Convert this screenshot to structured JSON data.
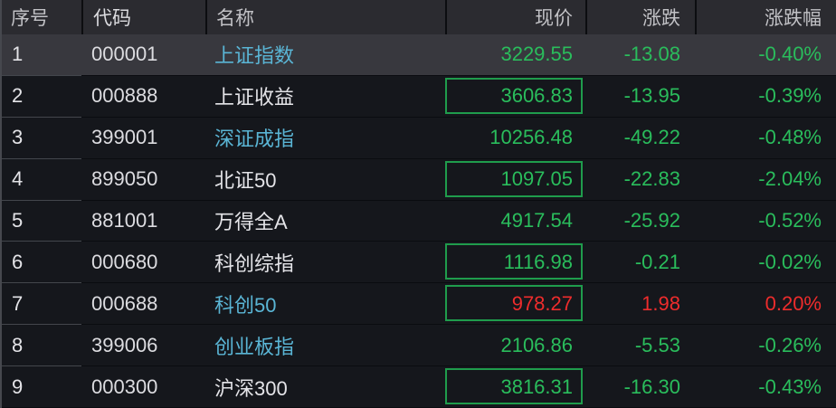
{
  "table": {
    "columns": [
      {
        "key": "seq",
        "label": "序号"
      },
      {
        "key": "code",
        "label": "代码"
      },
      {
        "key": "name",
        "label": "名称"
      },
      {
        "key": "price",
        "label": "现价"
      },
      {
        "key": "change",
        "label": "涨跌"
      },
      {
        "key": "change_pct",
        "label": "涨跌幅"
      }
    ],
    "rows": [
      {
        "seq": "1",
        "code": "000001",
        "name": "上证指数",
        "name_color": "cyan",
        "price": "3229.55",
        "change": "-13.08",
        "change_pct": "-0.40%",
        "trend": "down",
        "price_boxed": false,
        "highlighted": true
      },
      {
        "seq": "2",
        "code": "000888",
        "name": "上证收益",
        "name_color": "white",
        "price": "3606.83",
        "change": "-13.95",
        "change_pct": "-0.39%",
        "trend": "down",
        "price_boxed": true,
        "highlighted": false
      },
      {
        "seq": "3",
        "code": "399001",
        "name": "深证成指",
        "name_color": "cyan",
        "price": "10256.48",
        "change": "-49.22",
        "change_pct": "-0.48%",
        "trend": "down",
        "price_boxed": false,
        "highlighted": false
      },
      {
        "seq": "4",
        "code": "899050",
        "name": "北证50",
        "name_color": "white",
        "price": "1097.05",
        "change": "-22.83",
        "change_pct": "-2.04%",
        "trend": "down",
        "price_boxed": true,
        "highlighted": false
      },
      {
        "seq": "5",
        "code": "881001",
        "name": "万得全A",
        "name_color": "white",
        "price": "4917.54",
        "change": "-25.92",
        "change_pct": "-0.52%",
        "trend": "down",
        "price_boxed": false,
        "highlighted": false
      },
      {
        "seq": "6",
        "code": "000680",
        "name": "科创综指",
        "name_color": "white",
        "price": "1116.98",
        "change": "-0.21",
        "change_pct": "-0.02%",
        "trend": "down",
        "price_boxed": true,
        "highlighted": false
      },
      {
        "seq": "7",
        "code": "000688",
        "name": "科创50",
        "name_color": "cyan",
        "price": "978.27",
        "change": "1.98",
        "change_pct": "0.20%",
        "trend": "up",
        "price_boxed": true,
        "highlighted": false
      },
      {
        "seq": "8",
        "code": "399006",
        "name": "创业板指",
        "name_color": "cyan",
        "price": "2106.86",
        "change": "-5.53",
        "change_pct": "-0.26%",
        "trend": "down",
        "price_boxed": false,
        "highlighted": false
      },
      {
        "seq": "9",
        "code": "000300",
        "name": "沪深300",
        "name_color": "white",
        "price": "3816.31",
        "change": "-16.30",
        "change_pct": "-0.43%",
        "trend": "down",
        "price_boxed": true,
        "highlighted": false
      }
    ]
  },
  "colors": {
    "up_red": "#ee2c2c",
    "down_green": "#2abd5c",
    "name_cyan": "#5ab5d5",
    "name_white": "#e4e4e8",
    "box_border": "#1f9c4c",
    "header_bg": "#2b2b30",
    "row_highlight_bg": "#38383e",
    "row_bg": "#15171c"
  }
}
